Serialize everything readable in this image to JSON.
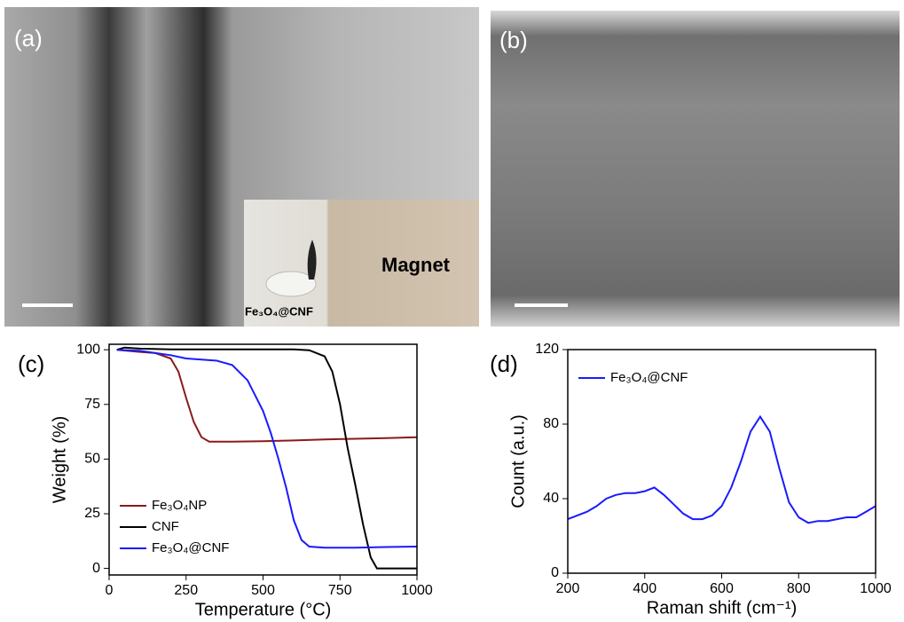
{
  "panels": [
    {
      "label": "(a)",
      "inset_sample": "Fe₃O₄@CNF",
      "inset_text": "Magnet"
    },
    {
      "label": "(b)"
    }
  ],
  "chart_data": [
    {
      "type": "line",
      "panel_label": "(c)",
      "x_label": "Temperature (°C)",
      "y_label": "Weight (%)",
      "xlim": [
        0,
        1000
      ],
      "xticks": [
        0,
        250,
        500,
        750,
        1000
      ],
      "ylim": [
        -3,
        102.5
      ],
      "yticks": [
        0,
        25,
        50,
        75,
        100
      ],
      "legend": "lower left",
      "series": [
        {
          "name": "Fe₃O₄NP",
          "color": "#8b1a1a",
          "x": [
            25,
            100,
            150,
            200,
            225,
            250,
            275,
            300,
            325,
            350,
            400,
            500,
            600,
            700,
            800,
            900,
            1000
          ],
          "values": [
            100,
            99,
            98.5,
            96,
            90,
            78,
            67,
            60,
            58,
            58,
            58,
            58.2,
            58.5,
            59,
            59.3,
            59.6,
            60
          ]
        },
        {
          "name": "CNF",
          "color": "#000000",
          "x": [
            25,
            50,
            100,
            200,
            400,
            600,
            650,
            700,
            725,
            750,
            775,
            800,
            825,
            850,
            870,
            900,
            1000
          ],
          "values": [
            100,
            101,
            100.5,
            100.2,
            100.2,
            100.2,
            99.8,
            97,
            90,
            75,
            55,
            38,
            20,
            5,
            0,
            0,
            0
          ]
        },
        {
          "name": "Fe₃O₄@CNF",
          "color": "#1a1aff",
          "x": [
            25,
            100,
            200,
            250,
            300,
            350,
            400,
            450,
            500,
            525,
            550,
            575,
            600,
            625,
            650,
            700,
            800,
            900,
            1000
          ],
          "values": [
            100,
            99.5,
            97.5,
            96,
            95.5,
            95,
            93,
            86,
            72,
            62,
            50,
            37,
            22,
            13,
            10,
            9.5,
            9.5,
            9.8,
            10
          ]
        }
      ]
    },
    {
      "type": "line",
      "panel_label": "(d)",
      "x_label": "Raman shift (cm⁻¹)",
      "y_label": "Count (a.u.)",
      "xlim": [
        200,
        1000
      ],
      "xticks": [
        200,
        400,
        600,
        800,
        1000
      ],
      "ylim": [
        0,
        120
      ],
      "yticks": [
        0,
        40,
        80,
        120
      ],
      "legend": "upper left",
      "series": [
        {
          "name": "Fe₃O₄@CNF",
          "color": "#1a1aff",
          "x": [
            200,
            225,
            250,
            275,
            300,
            325,
            350,
            375,
            400,
            425,
            450,
            475,
            500,
            525,
            550,
            575,
            600,
            625,
            650,
            675,
            700,
            725,
            750,
            775,
            800,
            825,
            850,
            875,
            900,
            925,
            950,
            975,
            1000
          ],
          "values": [
            29,
            31,
            33,
            36,
            40,
            42,
            43,
            43,
            44,
            46,
            42,
            37,
            32,
            29,
            29,
            31,
            36,
            46,
            60,
            76,
            84,
            76,
            56,
            38,
            30,
            27,
            28,
            28,
            29,
            30,
            30,
            33,
            36
          ]
        }
      ]
    }
  ]
}
